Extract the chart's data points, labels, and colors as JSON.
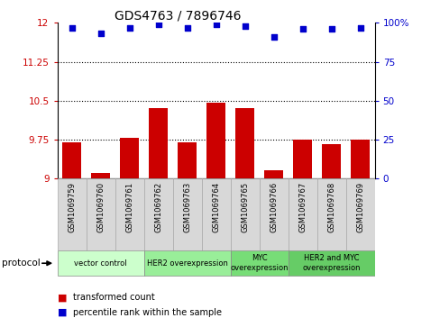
{
  "title": "GDS4763 / 7896746",
  "samples": [
    "GSM1069759",
    "GSM1069760",
    "GSM1069761",
    "GSM1069762",
    "GSM1069763",
    "GSM1069764",
    "GSM1069765",
    "GSM1069766",
    "GSM1069767",
    "GSM1069768",
    "GSM1069769"
  ],
  "transformed_counts": [
    9.7,
    9.1,
    9.78,
    10.35,
    9.7,
    10.46,
    10.35,
    9.15,
    9.75,
    9.65,
    9.75
  ],
  "percentile_ranks": [
    97,
    93,
    97,
    99,
    97,
    99,
    98,
    91,
    96,
    96,
    97
  ],
  "ylim_left": [
    9,
    12
  ],
  "ylim_right": [
    0,
    100
  ],
  "yticks_left": [
    9,
    9.75,
    10.5,
    11.25,
    12
  ],
  "ytick_labels_left": [
    "9",
    "9.75",
    "10.5",
    "11.25",
    "12"
  ],
  "yticks_right": [
    0,
    25,
    50,
    75,
    100
  ],
  "ytick_labels_right": [
    "0",
    "25",
    "50",
    "75",
    "100%"
  ],
  "bar_color": "#cc0000",
  "dot_color": "#0000cc",
  "bar_bottom": 9,
  "groups": [
    {
      "label": "vector control",
      "start": 0,
      "end": 2,
      "color": "#ccffcc"
    },
    {
      "label": "HER2 overexpression",
      "start": 3,
      "end": 5,
      "color": "#99ee99"
    },
    {
      "label": "MYC\noverexpression",
      "start": 6,
      "end": 7,
      "color": "#77dd77"
    },
    {
      "label": "HER2 and MYC\noverexpression",
      "start": 8,
      "end": 10,
      "color": "#66cc66"
    }
  ],
  "legend_bar_label": "transformed count",
  "legend_dot_label": "percentile rank within the sample",
  "protocol_label": "protocol",
  "background_color": "#ffffff",
  "dotted_yticks": [
    9.75,
    10.5,
    11.25
  ],
  "bar_width": 0.65,
  "sample_box_color": "#d8d8d8",
  "sample_box_edge": "#aaaaaa"
}
